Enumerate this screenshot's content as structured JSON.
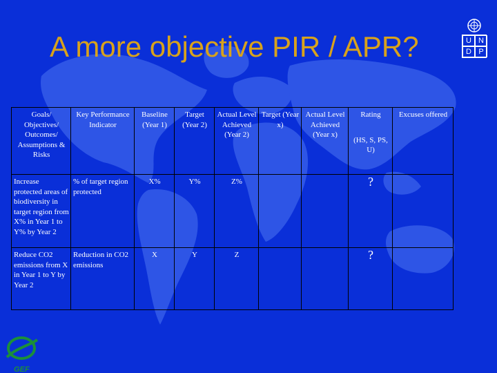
{
  "slide": {
    "title": "A more objective PIR / APR?",
    "undp_letters": [
      "U",
      "N",
      "D",
      "P"
    ],
    "gef_label": "GEF",
    "colors": {
      "background": "#0a2fd8",
      "title": "#d8a21c",
      "text": "#ffffff",
      "land": "#2e55e6",
      "gef_logo": "#1b8f3a"
    }
  },
  "table": {
    "headers": [
      "Goals/ Objectives/ Outcomes/ Assumptions & Risks",
      "Key Performance Indicator",
      "Baseline (Year 1)",
      "Target (Year 2)",
      "Actual Level Achieved (Year 2)",
      "Target (Year x)",
      "Actual Level Achieved (Year x)",
      "Rating",
      "Excuses offered"
    ],
    "rating_scale": "(HS, S, PS, U)",
    "rows": [
      {
        "goal": "Increase protected areas of biodiversity in target region from X% in Year 1 to Y% by Year 2",
        "indicator": "% of target region protected",
        "baseline": "X%",
        "target_y2": "Y%",
        "actual_y2": "Z%",
        "target_yx": "",
        "actual_yx": "",
        "rating": "?",
        "excuses": ""
      },
      {
        "goal": "Reduce CO2 emissions from X in Year 1 to Y by Year 2",
        "indicator": "Reduction in CO2 emissions",
        "baseline": "X",
        "target_y2": "Y",
        "actual_y2": "Z",
        "target_yx": "",
        "actual_yx": "",
        "rating": "?",
        "excuses": ""
      }
    ]
  }
}
